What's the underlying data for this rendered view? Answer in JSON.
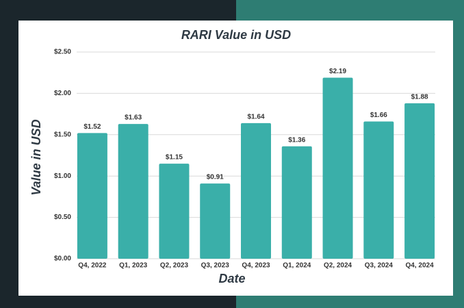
{
  "chart_data": {
    "type": "bar",
    "title": "RARI Value in USD",
    "x_label": "Date",
    "y_label": "Value in USD",
    "categories": [
      "Q4, 2022",
      "Q1, 2023",
      "Q2, 2023",
      "Q3, 2023",
      "Q4, 2023",
      "Q1, 2024",
      "Q2, 2024",
      "Q3, 2024",
      "Q4, 2024"
    ],
    "values": [
      1.52,
      1.63,
      1.15,
      0.91,
      1.64,
      1.36,
      2.19,
      1.66,
      1.88
    ],
    "value_labels": [
      "$1.52",
      "$1.63",
      "$1.15",
      "$0.91",
      "$1.64",
      "$1.36",
      "$2.19",
      "$1.66",
      "$1.88"
    ],
    "color": "#3aafa9",
    "ylim": [
      0,
      2.5
    ],
    "yticks": [
      {
        "value": 0,
        "label": "$0.00"
      },
      {
        "value": 0.5,
        "label": "$0.50"
      },
      {
        "value": 1,
        "label": "$1.00"
      },
      {
        "value": 1.5,
        "label": "$1.50"
      },
      {
        "value": 2,
        "label": "$2.00"
      },
      {
        "value": 2.5,
        "label": "$2.50"
      }
    ],
    "grid": true
  }
}
